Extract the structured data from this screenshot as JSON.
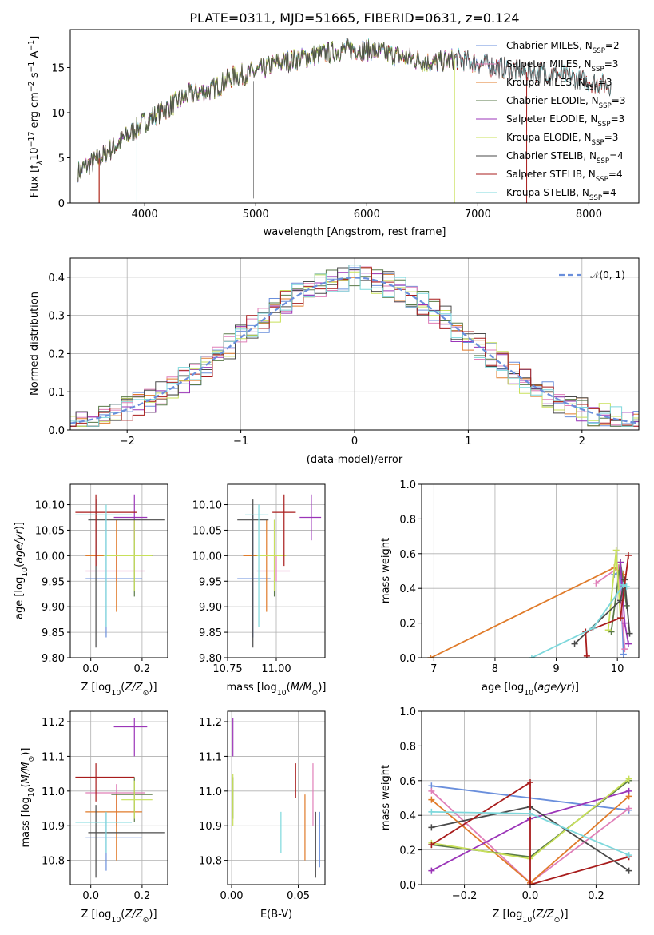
{
  "colors": {
    "Chabrier MILES": "#6a8fdc",
    "Salpeter MILES": "#e07fb8",
    "Kroupa MILES": "#e07b2a",
    "Chabrier ELODIE": "#5a7a48",
    "Salpeter ELODIE": "#9b35b8",
    "Kroupa ELODIE": "#c8e05a",
    "Chabrier STELIB": "#4a4a4a",
    "Salpeter STELIB": "#a81c1c",
    "Kroupa STELIB": "#7dd8dc"
  },
  "chart_data": [
    {
      "type": "line",
      "title": "PLATE=0311, MJD=51665, FIBERID=0631, z=0.124",
      "xlabel": "wavelength [Angstrom, rest frame]",
      "ylabel_parts": [
        "Flux [f",
        "λ",
        "10",
        "−17",
        " erg cm",
        "−2",
        " s",
        "−1",
        " A",
        "−1",
        "]"
      ],
      "xlim": [
        3330,
        8450
      ],
      "ylim": [
        0,
        19.2
      ],
      "xticks": [
        4000,
        5000,
        6000,
        7000,
        8000
      ],
      "yticks": [
        0,
        5,
        10,
        15
      ],
      "continuum": {
        "x": [
          3400,
          3600,
          3800,
          4000,
          4200,
          4400,
          4600,
          4800,
          5000,
          5200,
          5400,
          5600,
          5800,
          6000,
          6200,
          6400,
          6600,
          6800,
          7000,
          7200,
          7400,
          7600,
          7800,
          8000,
          8200
        ],
        "y": [
          3.5,
          5,
          7,
          9,
          10.5,
          12,
          12.5,
          14,
          14.5,
          15.5,
          16,
          16.5,
          17,
          17,
          16.5,
          16,
          15.5,
          16,
          15.5,
          15,
          14.5,
          14.5,
          14,
          13.5,
          13
        ]
      },
      "legend": [
        {
          "model": "Chabrier MILES",
          "nssp": "=2"
        },
        {
          "model": "Salpeter MILES",
          "nssp": "=3"
        },
        {
          "model": "Kroupa MILES",
          "nssp": "=3"
        },
        {
          "model": "Chabrier ELODIE",
          "nssp": "=3"
        },
        {
          "model": "Salpeter ELODIE",
          "nssp": "=3"
        },
        {
          "model": "Kroupa ELODIE",
          "nssp": "=3"
        },
        {
          "model": "Chabrier STELIB",
          "nssp": "=4"
        },
        {
          "model": "Salpeter STELIB",
          "nssp": "=4"
        },
        {
          "model": "Kroupa STELIB",
          "nssp": "=4"
        }
      ],
      "legend_location": "right",
      "grid": false
    },
    {
      "type": "line",
      "xlabel": "(data-model)/error",
      "ylabel": "Normed distribution",
      "xlim": [
        -2.5,
        2.5
      ],
      "ylim": [
        0,
        0.45
      ],
      "xticks": [
        -2,
        -1,
        0,
        1,
        2
      ],
      "yticks": [
        0.0,
        0.1,
        0.2,
        0.3,
        0.4
      ],
      "legend_label": "𝒩(0, 1)",
      "legend_location": "top-right",
      "grid": true
    },
    {
      "type": "scatter",
      "xlabel": "Z [log10(Z/Z⊙)]",
      "ylabel": "age  [log10(age/yr)]",
      "xlim": [
        -0.08,
        0.3
      ],
      "ylim": [
        9.8,
        10.14
      ],
      "xticks": [
        0.0,
        0.2
      ],
      "yticks": [
        9.8,
        9.85,
        9.9,
        9.95,
        10.0,
        10.05,
        10.1
      ],
      "points": [
        {
          "model": "Chabrier MILES",
          "x": 0.06,
          "y": 9.955,
          "xlo": -0.02,
          "xhi": 0.2,
          "ylo": 9.84,
          "yhi": 10.08
        },
        {
          "model": "Salpeter MILES",
          "x": 0.1,
          "y": 9.97,
          "xlo": -0.02,
          "xhi": 0.21,
          "ylo": 9.95,
          "yhi": 10.0
        },
        {
          "model": "Kroupa MILES",
          "x": 0.1,
          "y": 10.0,
          "xlo": -0.02,
          "xhi": 0.2,
          "ylo": 9.89,
          "yhi": 10.07
        },
        {
          "model": "Chabrier ELODIE",
          "x": 0.17,
          "y": 10.0,
          "xlo": 0.05,
          "xhi": 0.24,
          "ylo": 9.92,
          "yhi": 10.07
        },
        {
          "model": "Salpeter ELODIE",
          "x": 0.17,
          "y": 10.075,
          "xlo": 0.09,
          "xhi": 0.22,
          "ylo": 10.03,
          "yhi": 10.12
        },
        {
          "model": "Kroupa ELODIE",
          "x": 0.17,
          "y": 10.0,
          "xlo": 0.05,
          "xhi": 0.24,
          "ylo": 9.93,
          "yhi": 10.07
        },
        {
          "model": "Chabrier STELIB",
          "x": 0.02,
          "y": 10.07,
          "xlo": -0.01,
          "xhi": 0.29,
          "ylo": 9.82,
          "yhi": 10.11
        },
        {
          "model": "Salpeter STELIB",
          "x": 0.02,
          "y": 10.085,
          "xlo": -0.06,
          "xhi": 0.18,
          "ylo": 9.98,
          "yhi": 10.12
        },
        {
          "model": "Kroupa STELIB",
          "x": 0.06,
          "y": 10.08,
          "xlo": -0.06,
          "xhi": 0.16,
          "ylo": 9.86,
          "yhi": 10.1
        }
      ],
      "grid": true
    },
    {
      "type": "scatter",
      "xlabel": "mass [log10(M/M⊙)]",
      "xlim": [
        10.75,
        11.25
      ],
      "ylim": [
        9.8,
        10.14
      ],
      "xticks": [
        10.75,
        11.0
      ],
      "yticks": [
        9.8,
        9.85,
        9.9,
        9.95,
        10.0,
        10.05,
        10.1
      ],
      "points": [
        {
          "model": "Chabrier MILES",
          "x": 10.88,
          "y": 9.955,
          "xlo": 10.8,
          "xhi": 10.97,
          "ylo": 9.84,
          "yhi": 10.08
        },
        {
          "model": "Salpeter MILES",
          "x": 11.0,
          "y": 9.97,
          "xlo": 10.9,
          "xhi": 11.07,
          "ylo": 9.95,
          "yhi": 10.0
        },
        {
          "model": "Kroupa MILES",
          "x": 10.95,
          "y": 10.0,
          "xlo": 10.83,
          "xhi": 11.0,
          "ylo": 9.89,
          "yhi": 10.07
        },
        {
          "model": "Chabrier ELODIE",
          "x": 10.99,
          "y": 10.0,
          "xlo": 10.9,
          "xhi": 11.03,
          "ylo": 9.92,
          "yhi": 10.07
        },
        {
          "model": "Salpeter ELODIE",
          "x": 11.18,
          "y": 10.075,
          "xlo": 11.12,
          "xhi": 11.23,
          "ylo": 10.03,
          "yhi": 10.12
        },
        {
          "model": "Kroupa ELODIE",
          "x": 10.99,
          "y": 10.0,
          "xlo": 10.9,
          "xhi": 11.05,
          "ylo": 9.93,
          "yhi": 10.07
        },
        {
          "model": "Chabrier STELIB",
          "x": 10.88,
          "y": 10.07,
          "xlo": 10.8,
          "xhi": 10.96,
          "ylo": 9.82,
          "yhi": 10.11
        },
        {
          "model": "Salpeter STELIB",
          "x": 11.04,
          "y": 10.085,
          "xlo": 10.98,
          "xhi": 11.1,
          "ylo": 9.98,
          "yhi": 10.12
        },
        {
          "model": "Kroupa STELIB",
          "x": 10.91,
          "y": 10.08,
          "xlo": 10.84,
          "xhi": 10.96,
          "ylo": 9.86,
          "yhi": 10.1
        }
      ],
      "grid": true
    },
    {
      "type": "line",
      "xlabel": "age  [log10(age/yr)]",
      "ylabel": "mass weight",
      "xlim": [
        6.8,
        10.35
      ],
      "ylim": [
        0,
        1.0
      ],
      "xticks": [
        7,
        8,
        9,
        10
      ],
      "yticks": [
        0.0,
        0.2,
        0.4,
        0.6,
        0.8,
        1.0
      ],
      "series": [
        {
          "model": "Chabrier MILES",
          "x": [
            9.95,
            10.05,
            10.1
          ],
          "y": [
            0.48,
            0.5,
            0.02
          ]
        },
        {
          "model": "Salpeter MILES",
          "x": [
            9.65,
            10.02,
            10.12
          ],
          "y": [
            0.43,
            0.52,
            0.05
          ]
        },
        {
          "model": "Kroupa MILES",
          "x": [
            6.95,
            9.95,
            10.1
          ],
          "y": [
            0.0,
            0.52,
            0.48
          ]
        },
        {
          "model": "Chabrier ELODIE",
          "x": [
            9.9,
            10.05,
            10.15
          ],
          "y": [
            0.15,
            0.55,
            0.3
          ]
        },
        {
          "model": "Salpeter ELODIE",
          "x": [
            10.05,
            10.12,
            10.18
          ],
          "y": [
            0.55,
            0.2,
            0.08
          ]
        },
        {
          "model": "Kroupa ELODIE",
          "x": [
            9.85,
            9.98,
            10.05
          ],
          "y": [
            0.16,
            0.62,
            0.23
          ]
        },
        {
          "model": "Chabrier STELIB",
          "x": [
            9.3,
            10.05,
            10.12,
            10.2
          ],
          "y": [
            0.08,
            0.33,
            0.45,
            0.14
          ]
        },
        {
          "model": "Salpeter STELIB",
          "x": [
            9.5,
            9.48,
            10.05,
            10.18
          ],
          "y": [
            0.01,
            0.15,
            0.23,
            0.59
          ]
        },
        {
          "model": "Kroupa STELIB",
          "x": [
            8.6,
            9.6,
            10.1,
            10.15
          ],
          "y": [
            0.0,
            0.17,
            0.42,
            0.41
          ]
        }
      ],
      "grid": true
    },
    {
      "type": "scatter",
      "xlabel": "Z [log10(Z/Z⊙)]",
      "ylabel": "mass [log10(M/M⊙)]",
      "xlim": [
        -0.08,
        0.3
      ],
      "ylim": [
        10.73,
        11.23
      ],
      "xticks": [
        0.0,
        0.2
      ],
      "yticks": [
        10.8,
        10.9,
        11.0,
        11.1,
        11.2
      ],
      "points": [
        {
          "model": "Chabrier MILES",
          "x": 0.06,
          "y": 10.865,
          "xlo": -0.02,
          "xhi": 0.2,
          "ylo": 10.77,
          "yhi": 10.94
        },
        {
          "model": "Salpeter MILES",
          "x": 0.1,
          "y": 10.995,
          "xlo": -0.02,
          "xhi": 0.21,
          "ylo": 10.9,
          "yhi": 11.02
        },
        {
          "model": "Kroupa MILES",
          "x": 0.1,
          "y": 10.94,
          "xlo": -0.02,
          "xhi": 0.2,
          "ylo": 10.8,
          "yhi": 10.99
        },
        {
          "model": "Chabrier ELODIE",
          "x": 0.17,
          "y": 10.99,
          "xlo": 0.08,
          "xhi": 0.24,
          "ylo": 10.91,
          "yhi": 11.04
        },
        {
          "model": "Salpeter ELODIE",
          "x": 0.17,
          "y": 11.185,
          "xlo": 0.09,
          "xhi": 0.22,
          "ylo": 11.1,
          "yhi": 11.21
        },
        {
          "model": "Kroupa ELODIE",
          "x": 0.17,
          "y": 10.975,
          "xlo": 0.12,
          "xhi": 0.24,
          "ylo": 10.92,
          "yhi": 11.03
        },
        {
          "model": "Chabrier STELIB",
          "x": 0.02,
          "y": 10.88,
          "xlo": -0.01,
          "xhi": 0.29,
          "ylo": 10.75,
          "yhi": 10.96
        },
        {
          "model": "Salpeter STELIB",
          "x": 0.02,
          "y": 11.04,
          "xlo": -0.06,
          "xhi": 0.17,
          "ylo": 10.97,
          "yhi": 11.08
        },
        {
          "model": "Kroupa STELIB",
          "x": 0.06,
          "y": 10.91,
          "xlo": -0.06,
          "xhi": 0.16,
          "ylo": 10.82,
          "yhi": 10.94
        }
      ],
      "grid": true
    },
    {
      "type": "scatter",
      "xlabel": "E(B-V)",
      "xlim": [
        -0.003,
        0.07
      ],
      "ylim": [
        10.73,
        11.23
      ],
      "xticks": [
        0.0,
        0.05
      ],
      "yticks": [
        10.8,
        10.9,
        11.0,
        11.1,
        11.2
      ],
      "points": [
        {
          "model": "Chabrier MILES",
          "x": 0.066,
          "y": 10.865,
          "ylo": 10.78,
          "yhi": 10.94
        },
        {
          "model": "Salpeter MILES",
          "x": 0.061,
          "y": 10.995,
          "ylo": 10.9,
          "yhi": 11.08
        },
        {
          "model": "Kroupa MILES",
          "x": 0.055,
          "y": 10.94,
          "ylo": 10.8,
          "yhi": 10.99
        },
        {
          "model": "Chabrier ELODIE",
          "x": 0.001,
          "y": 10.99,
          "ylo": 10.92,
          "yhi": 11.04
        },
        {
          "model": "Salpeter ELODIE",
          "x": 0.001,
          "y": 11.185,
          "ylo": 11.1,
          "yhi": 11.21
        },
        {
          "model": "Kroupa ELODIE",
          "x": 0.001,
          "y": 10.975,
          "ylo": 10.9,
          "yhi": 11.05
        },
        {
          "model": "Chabrier STELIB",
          "x": 0.063,
          "y": 10.88,
          "ylo": 10.75,
          "yhi": 10.94
        },
        {
          "model": "Salpeter STELIB",
          "x": 0.048,
          "y": 11.04,
          "ylo": 10.98,
          "yhi": 11.08
        },
        {
          "model": "Kroupa STELIB",
          "x": 0.037,
          "y": 10.91,
          "ylo": 10.82,
          "yhi": 10.94
        }
      ],
      "grid": true
    },
    {
      "type": "line",
      "xlabel": "Z [log10(Z/Z⊙)]",
      "ylabel": "mass weight",
      "xlim": [
        -0.33,
        0.33
      ],
      "ylim": [
        0,
        1.0
      ],
      "xticks": [
        -0.2,
        0.0,
        0.2
      ],
      "yticks": [
        0.0,
        0.2,
        0.4,
        0.6,
        0.8,
        1.0
      ],
      "series": [
        {
          "model": "Chabrier MILES",
          "x": [
            -0.3,
            0.3
          ],
          "y": [
            0.57,
            0.43
          ]
        },
        {
          "model": "Salpeter MILES",
          "x": [
            -0.3,
            0.0,
            0.3
          ],
          "y": [
            0.54,
            0.01,
            0.44
          ]
        },
        {
          "model": "Kroupa MILES",
          "x": [
            -0.3,
            0.0,
            0.3
          ],
          "y": [
            0.49,
            0.01,
            0.51
          ]
        },
        {
          "model": "Chabrier ELODIE",
          "x": [
            -0.3,
            0.0,
            0.3
          ],
          "y": [
            0.23,
            0.16,
            0.6
          ]
        },
        {
          "model": "Salpeter ELODIE",
          "x": [
            -0.3,
            0.0,
            0.3
          ],
          "y": [
            0.08,
            0.38,
            0.54
          ]
        },
        {
          "model": "Kroupa ELODIE",
          "x": [
            -0.3,
            0.0,
            0.3
          ],
          "y": [
            0.24,
            0.15,
            0.61
          ]
        },
        {
          "model": "Chabrier STELIB",
          "x": [
            -0.3,
            0.0,
            0.3
          ],
          "y": [
            0.33,
            0.45,
            0.08
          ]
        },
        {
          "model": "Salpeter STELIB",
          "x": [
            -0.3,
            0.0,
            0.0,
            0.3
          ],
          "y": [
            0.23,
            0.59,
            0.0,
            0.16
          ]
        },
        {
          "model": "Kroupa STELIB",
          "x": [
            -0.3,
            0.0,
            0.3
          ],
          "y": [
            0.42,
            0.41,
            0.17
          ]
        }
      ],
      "grid": true
    }
  ]
}
